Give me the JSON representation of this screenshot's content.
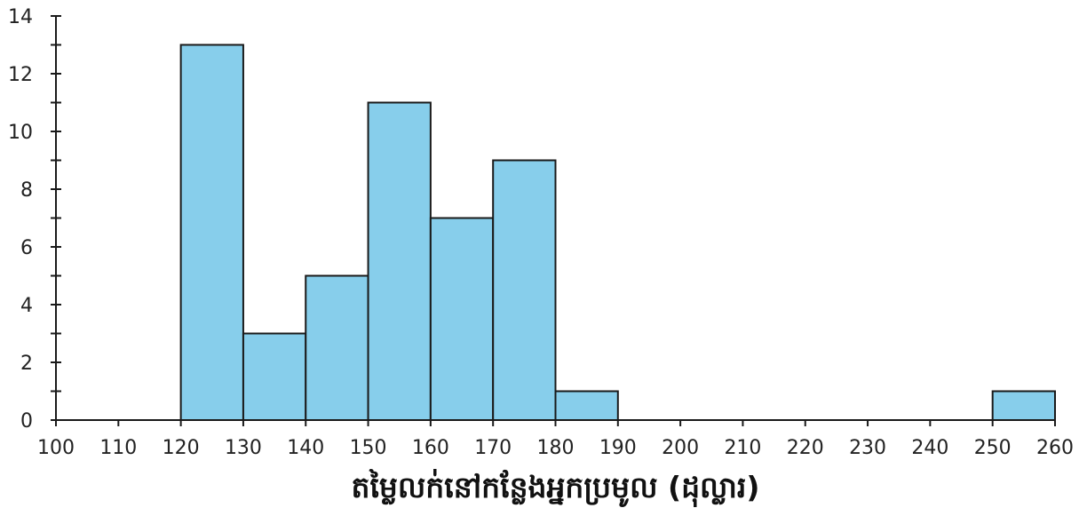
{
  "chart_data": {
    "type": "bar",
    "subtype": "histogram",
    "xlabel": "តម្លៃលក់នៅកន្លែងអ្នកប្រមូល (ដុល្លារ)",
    "ylabel": "",
    "title": "",
    "bins": [
      {
        "start": 120,
        "end": 130,
        "value": 13
      },
      {
        "start": 130,
        "end": 140,
        "value": 3
      },
      {
        "start": 140,
        "end": 150,
        "value": 5
      },
      {
        "start": 150,
        "end": 160,
        "value": 11
      },
      {
        "start": 160,
        "end": 170,
        "value": 7
      },
      {
        "start": 170,
        "end": 180,
        "value": 9
      },
      {
        "start": 180,
        "end": 190,
        "value": 1
      },
      {
        "start": 250,
        "end": 260,
        "value": 1
      }
    ],
    "xlim": [
      100,
      260
    ],
    "ylim": [
      0,
      14
    ],
    "x_ticks": [
      "100",
      "110",
      "120",
      "130",
      "140",
      "150",
      "160",
      "170",
      "180",
      "190",
      "200",
      "210",
      "220",
      "230",
      "240",
      "250",
      "260"
    ],
    "y_ticks": [
      "0",
      "2",
      "4",
      "6",
      "8",
      "10",
      "12",
      "14"
    ],
    "y_minor_step": 1,
    "grid": false,
    "legend": "none",
    "colors": {
      "bar_fill": "#87CEEB",
      "bar_stroke": "#1a1a1a",
      "axis": "#1a1a1a",
      "text": "#222222"
    }
  }
}
